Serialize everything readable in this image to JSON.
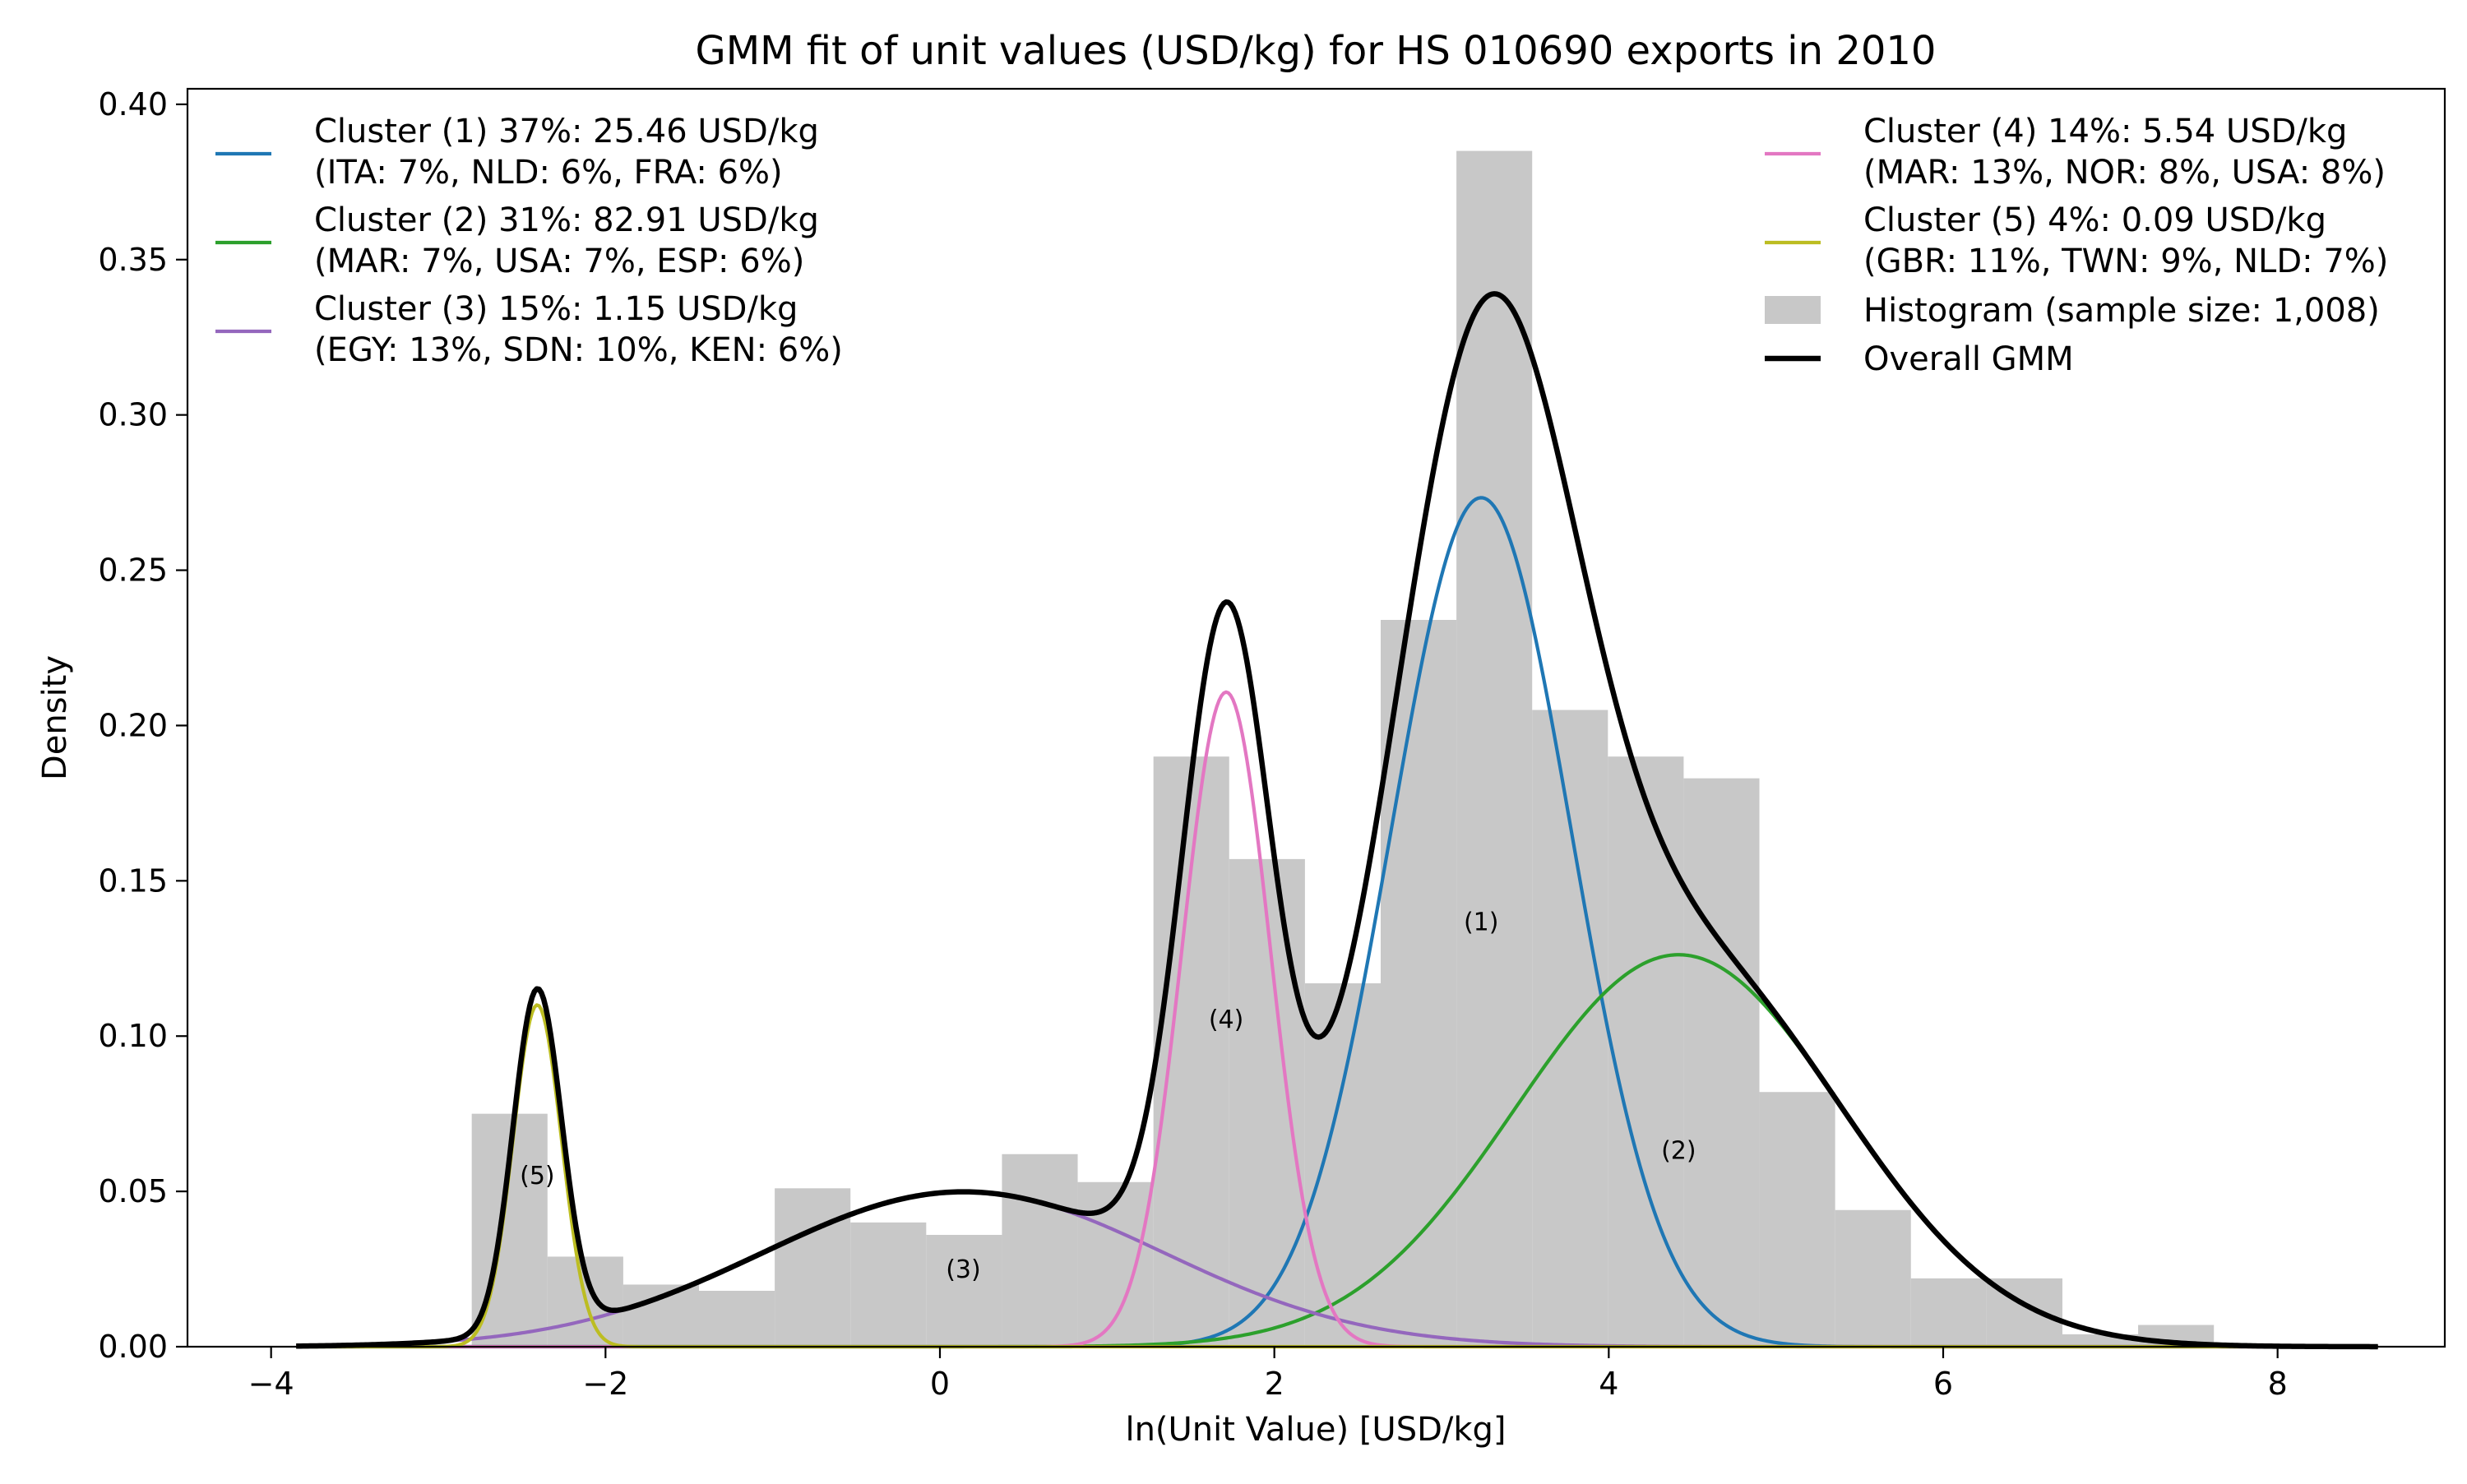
{
  "chart_data": {
    "type": "histogram+line",
    "title": "GMM fit of unit values (USD/kg) for HS 010690 exports in 2010",
    "xlabel": "ln(Unit Value) [USD/kg]",
    "ylabel": "Density",
    "xlim": [
      -4.5,
      9.0
    ],
    "ylim": [
      0.0,
      0.405
    ],
    "x_ticks": [
      -4,
      -2,
      0,
      2,
      4,
      6,
      8
    ],
    "x_tick_labels": [
      "−4",
      "−2",
      "0",
      "2",
      "4",
      "6",
      "8"
    ],
    "y_ticks": [
      0.0,
      0.05,
      0.1,
      0.15,
      0.2,
      0.25,
      0.3,
      0.35,
      0.4
    ],
    "y_tick_labels": [
      "0.00",
      "0.05",
      "0.10",
      "0.15",
      "0.20",
      "0.25",
      "0.30",
      "0.35",
      "0.40"
    ],
    "grid": false,
    "histogram": {
      "label": "Histogram (sample size: 1,008)",
      "color": "#c8c8c8",
      "bin_start": -2.8,
      "bin_width": 0.453,
      "densities": [
        0.075,
        0.029,
        0.02,
        0.018,
        0.051,
        0.04,
        0.036,
        0.062,
        0.053,
        0.19,
        0.157,
        0.117,
        0.234,
        0.385,
        0.205,
        0.19,
        0.183,
        0.082,
        0.044,
        0.022,
        0.022,
        0.004,
        0.007,
        0.0
      ]
    },
    "series": [
      {
        "name": "Cluster (1) 37%: 25.46 USD/kg",
        "line2": "(ITA: 7%, NLD: 6%, FRA: 6%)",
        "marker": "(1)",
        "color": "#1f77b4",
        "weight": 0.37,
        "mean": 3.237,
        "sd": 0.54
      },
      {
        "name": "Cluster (2) 31%: 82.91 USD/kg",
        "line2": "(MAR: 7%, USA: 7%, ESP: 6%)",
        "marker": "(2)",
        "color": "#2ca02c",
        "weight": 0.31,
        "mean": 4.418,
        "sd": 0.98
      },
      {
        "name": "Cluster (3) 15%: 1.15 USD/kg",
        "line2": "(EGY: 13%, SDN: 10%, KEN: 6%)",
        "marker": "(3)",
        "color": "#9467bd",
        "weight": 0.15,
        "mean": 0.14,
        "sd": 1.2
      },
      {
        "name": "Cluster (4) 14%: 5.54 USD/kg",
        "line2": "(MAR: 13%, NOR: 8%, USA: 8%)",
        "marker": "(4)",
        "color": "#e377c2",
        "weight": 0.14,
        "mean": 1.712,
        "sd": 0.265
      },
      {
        "name": "Cluster (5) 4%: 0.09 USD/kg",
        "line2": "(GBR: 11%, TWN: 9%, NLD: 7%)",
        "marker": "(5)",
        "color": "#bcbd22",
        "weight": 0.04,
        "mean": -2.408,
        "sd": 0.145
      }
    ],
    "overall": {
      "name": "Overall GMM",
      "color": "#000000",
      "x_range": [
        -3.85,
        8.6
      ]
    },
    "legend_placement": "upper-left and upper-right"
  }
}
